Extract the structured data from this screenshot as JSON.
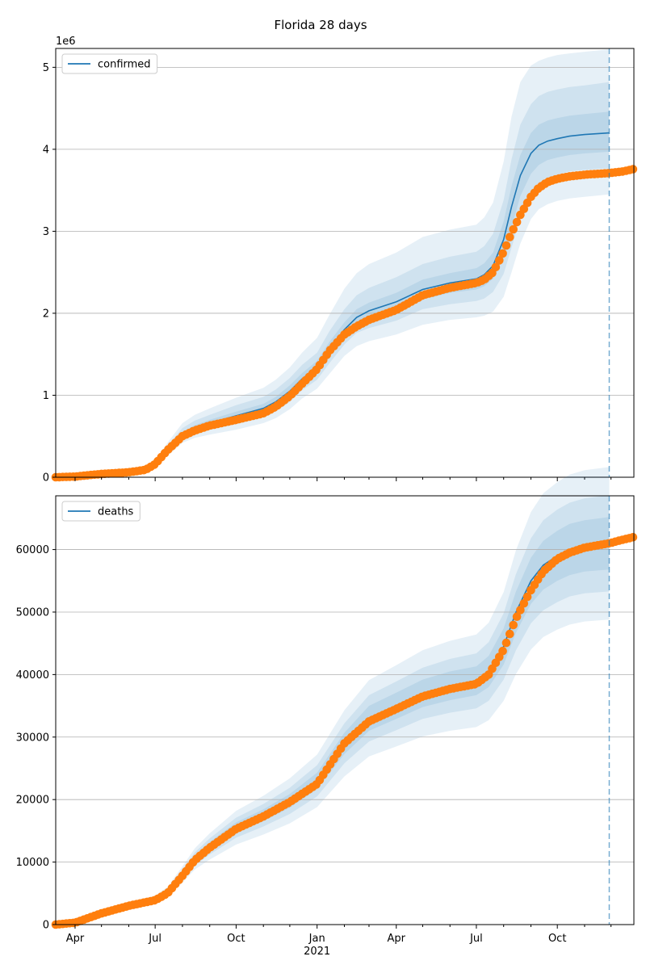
{
  "figure": {
    "title": "Florida 28 days",
    "x_year_label": "2021"
  },
  "colors": {
    "model_line": "#1f77b4",
    "observed_points": "#ff7f0e",
    "band": "#1f77b4",
    "grid": "#b0b0b0",
    "forecast_line": "#1f77b4"
  },
  "chart_data": [
    {
      "type": "line",
      "panel": "top",
      "legend": {
        "label": "confirmed",
        "location": "upper-left"
      },
      "y_scale_label": "1e6",
      "ylim": [
        0,
        5.23
      ],
      "yticks": [
        0,
        1,
        2,
        3,
        4,
        5
      ],
      "ytick_labels": [
        "0",
        "1",
        "2",
        "3",
        "4",
        "5"
      ],
      "xlim": [
        "2020-03-10",
        "2021-12-27"
      ],
      "forecast_start": "2021-11-29",
      "grid": "horizontal",
      "model": {
        "x": [
          "2020-03-10",
          "2020-04-01",
          "2020-05-01",
          "2020-06-01",
          "2020-06-20",
          "2020-07-01",
          "2020-07-15",
          "2020-08-01",
          "2020-08-15",
          "2020-09-01",
          "2020-10-01",
          "2020-11-01",
          "2020-11-15",
          "2020-12-01",
          "2020-12-15",
          "2021-01-01",
          "2021-01-15",
          "2021-02-01",
          "2021-02-15",
          "2021-03-01",
          "2021-04-01",
          "2021-05-01",
          "2021-06-01",
          "2021-07-01",
          "2021-07-10",
          "2021-07-20",
          "2021-08-01",
          "2021-08-10",
          "2021-08-20",
          "2021-09-01",
          "2021-09-10",
          "2021-09-20",
          "2021-10-01",
          "2021-10-15",
          "2021-11-01",
          "2021-11-29"
        ],
        "y": [
          0,
          0.008,
          0.04,
          0.06,
          0.09,
          0.16,
          0.33,
          0.52,
          0.6,
          0.66,
          0.75,
          0.84,
          0.92,
          1.05,
          1.2,
          1.34,
          1.56,
          1.8,
          1.95,
          2.03,
          2.14,
          2.29,
          2.37,
          2.42,
          2.47,
          2.58,
          2.9,
          3.3,
          3.68,
          3.95,
          4.05,
          4.1,
          4.13,
          4.16,
          4.18,
          4.2
        ]
      },
      "bands": [
        {
          "level": "outer",
          "lower": [
            0,
            0.006,
            0.03,
            0.05,
            0.07,
            0.12,
            0.26,
            0.42,
            0.48,
            0.52,
            0.58,
            0.66,
            0.72,
            0.83,
            0.96,
            1.08,
            1.26,
            1.48,
            1.6,
            1.66,
            1.74,
            1.86,
            1.92,
            1.95,
            1.97,
            2.02,
            2.2,
            2.5,
            2.85,
            3.15,
            3.27,
            3.33,
            3.37,
            3.4,
            3.42,
            3.45
          ],
          "upper": [
            0,
            0.01,
            0.05,
            0.075,
            0.11,
            0.2,
            0.42,
            0.66,
            0.76,
            0.84,
            0.97,
            1.09,
            1.19,
            1.34,
            1.52,
            1.7,
            1.98,
            2.3,
            2.49,
            2.6,
            2.74,
            2.93,
            3.02,
            3.08,
            3.17,
            3.35,
            3.85,
            4.4,
            4.82,
            5.02,
            5.08,
            5.12,
            5.15,
            5.17,
            5.19,
            5.22
          ]
        },
        {
          "level": "mid",
          "lower": [
            0,
            0.007,
            0.034,
            0.054,
            0.078,
            0.135,
            0.29,
            0.46,
            0.53,
            0.58,
            0.65,
            0.73,
            0.8,
            0.92,
            1.06,
            1.19,
            1.39,
            1.62,
            1.76,
            1.82,
            1.91,
            2.05,
            2.11,
            2.15,
            2.18,
            2.26,
            2.48,
            2.8,
            3.17,
            3.45,
            3.58,
            3.65,
            3.69,
            3.73,
            3.75,
            3.77
          ],
          "upper": [
            0,
            0.009,
            0.046,
            0.068,
            0.1,
            0.18,
            0.38,
            0.6,
            0.69,
            0.76,
            0.88,
            0.98,
            1.07,
            1.21,
            1.37,
            1.52,
            1.78,
            2.05,
            2.22,
            2.31,
            2.44,
            2.6,
            2.69,
            2.75,
            2.82,
            2.97,
            3.38,
            3.88,
            4.3,
            4.55,
            4.65,
            4.7,
            4.73,
            4.76,
            4.78,
            4.82
          ]
        },
        {
          "level": "inner",
          "lower": [
            0,
            0.0075,
            0.037,
            0.057,
            0.084,
            0.148,
            0.31,
            0.49,
            0.565,
            0.62,
            0.7,
            0.785,
            0.86,
            0.98,
            1.13,
            1.26,
            1.47,
            1.71,
            1.86,
            1.93,
            2.03,
            2.17,
            2.25,
            2.29,
            2.33,
            2.42,
            2.68,
            3.05,
            3.43,
            3.7,
            3.81,
            3.87,
            3.9,
            3.93,
            3.95,
            3.97
          ],
          "upper": [
            0,
            0.0085,
            0.043,
            0.064,
            0.096,
            0.172,
            0.355,
            0.55,
            0.635,
            0.7,
            0.8,
            0.895,
            0.98,
            1.12,
            1.27,
            1.42,
            1.65,
            1.89,
            2.05,
            2.13,
            2.25,
            2.41,
            2.49,
            2.55,
            2.61,
            2.74,
            3.12,
            3.55,
            3.93,
            4.2,
            4.3,
            4.35,
            4.38,
            4.41,
            4.43,
            4.46
          ]
        }
      ],
      "observed": {
        "x": [
          "2020-03-10",
          "2020-04-01",
          "2020-05-01",
          "2020-06-01",
          "2020-06-20",
          "2020-07-01",
          "2020-07-15",
          "2020-08-01",
          "2020-08-15",
          "2020-09-01",
          "2020-10-01",
          "2020-11-01",
          "2020-11-15",
          "2020-12-01",
          "2020-12-15",
          "2021-01-01",
          "2021-01-15",
          "2021-02-01",
          "2021-02-15",
          "2021-03-01",
          "2021-04-01",
          "2021-05-01",
          "2021-06-01",
          "2021-07-01",
          "2021-07-10",
          "2021-07-20",
          "2021-08-01",
          "2021-08-10",
          "2021-08-20",
          "2021-09-01",
          "2021-09-10",
          "2021-09-20",
          "2021-10-01",
          "2021-10-15",
          "2021-11-01",
          "2021-11-29",
          "2021-12-15",
          "2021-12-27"
        ],
        "y": [
          0,
          0.008,
          0.04,
          0.06,
          0.09,
          0.16,
          0.33,
          0.5,
          0.57,
          0.63,
          0.7,
          0.78,
          0.86,
          0.99,
          1.14,
          1.32,
          1.54,
          1.74,
          1.84,
          1.92,
          2.04,
          2.22,
          2.31,
          2.37,
          2.41,
          2.5,
          2.75,
          2.98,
          3.2,
          3.42,
          3.53,
          3.6,
          3.64,
          3.67,
          3.69,
          3.71,
          3.73,
          3.76
        ]
      }
    },
    {
      "type": "line",
      "panel": "bottom",
      "legend": {
        "label": "deaths",
        "location": "upper-left"
      },
      "ylim": [
        0,
        68600
      ],
      "yticks": [
        0,
        10000,
        20000,
        30000,
        40000,
        50000,
        60000
      ],
      "ytick_labels": [
        "0",
        "10000",
        "20000",
        "30000",
        "40000",
        "50000",
        "60000"
      ],
      "xlim": [
        "2020-03-10",
        "2021-12-27"
      ],
      "xticks": [
        "2020-04-01",
        "2020-07-01",
        "2020-10-01",
        "2021-01-01",
        "2021-04-01",
        "2021-07-01",
        "2021-10-01"
      ],
      "xtick_labels": [
        "Apr",
        "Jul",
        "Oct",
        "Jan",
        "Apr",
        "Jul",
        "Oct"
      ],
      "forecast_start": "2021-11-29",
      "grid": "horizontal",
      "model": {
        "x": [
          "2020-03-10",
          "2020-04-01",
          "2020-05-01",
          "2020-06-01",
          "2020-07-01",
          "2020-07-15",
          "2020-08-01",
          "2020-08-15",
          "2020-09-01",
          "2020-10-01",
          "2020-11-01",
          "2020-12-01",
          "2021-01-01",
          "2021-02-01",
          "2021-03-01",
          "2021-04-01",
          "2021-05-01",
          "2021-06-01",
          "2021-07-01",
          "2021-07-15",
          "2021-08-01",
          "2021-08-15",
          "2021-09-01",
          "2021-09-15",
          "2021-10-01",
          "2021-10-15",
          "2021-11-01",
          "2021-11-29"
        ],
        "y": [
          0,
          300,
          1800,
          3000,
          4000,
          5200,
          8000,
          10500,
          12500,
          15500,
          17500,
          19800,
          23000,
          29000,
          33000,
          35000,
          37000,
          38200,
          39000,
          40500,
          44500,
          50000,
          55000,
          57500,
          59000,
          60000,
          60600,
          61000
        ]
      },
      "bands": [
        {
          "level": "outer",
          "lower": [
            0,
            250,
            1550,
            2550,
            3380,
            4380,
            6700,
            8800,
            10400,
            12800,
            14400,
            16200,
            18800,
            23700,
            26900,
            28500,
            30100,
            31000,
            31600,
            32700,
            35800,
            40100,
            44000,
            46000,
            47200,
            48000,
            48500,
            48800
          ],
          "upper": [
            0,
            350,
            2050,
            3450,
            4620,
            6020,
            9300,
            12200,
            14600,
            18200,
            20600,
            23400,
            27200,
            34300,
            39100,
            41500,
            43900,
            45400,
            46400,
            48300,
            53200,
            59900,
            66000,
            69000,
            70800,
            72000,
            72700,
            73200
          ]
        },
        {
          "level": "mid",
          "lower": [
            0,
            270,
            1650,
            2730,
            3620,
            4700,
            7200,
            9450,
            11200,
            13900,
            15700,
            17700,
            20500,
            25800,
            29300,
            31100,
            32900,
            33900,
            34600,
            35800,
            39200,
            43900,
            48200,
            50300,
            51600,
            52500,
            53000,
            53300
          ],
          "upper": [
            0,
            330,
            1950,
            3270,
            4380,
            5700,
            8800,
            11550,
            13800,
            17100,
            19300,
            21900,
            25500,
            32200,
            36700,
            38900,
            41100,
            42500,
            43400,
            45200,
            49800,
            56100,
            61800,
            64700,
            66400,
            67500,
            68200,
            68700
          ]
        },
        {
          "level": "inner",
          "lower": [
            0,
            285,
            1720,
            2860,
            3800,
            4930,
            7580,
            9950,
            11800,
            14650,
            16550,
            18700,
            21700,
            27300,
            31000,
            32900,
            34800,
            35900,
            36700,
            38000,
            41600,
            46700,
            51300,
            53600,
            55000,
            55900,
            56500,
            56800
          ],
          "upper": [
            0,
            315,
            1880,
            3140,
            4200,
            5470,
            8420,
            11050,
            13200,
            16350,
            18450,
            20900,
            24300,
            30700,
            35000,
            37100,
            39200,
            40500,
            41300,
            43000,
            47400,
            53300,
            58700,
            61400,
            63000,
            64100,
            64700,
            65200
          ]
        }
      ],
      "observed": {
        "x": [
          "2020-03-10",
          "2020-04-01",
          "2020-05-01",
          "2020-06-01",
          "2020-07-01",
          "2020-07-15",
          "2020-08-01",
          "2020-08-15",
          "2020-09-01",
          "2020-10-01",
          "2020-11-01",
          "2020-12-01",
          "2021-01-01",
          "2021-02-01",
          "2021-03-01",
          "2021-04-01",
          "2021-05-01",
          "2021-06-01",
          "2021-07-01",
          "2021-07-15",
          "2021-08-01",
          "2021-08-15",
          "2021-09-01",
          "2021-09-15",
          "2021-10-01",
          "2021-10-15",
          "2021-11-01",
          "2021-11-29",
          "2021-12-15",
          "2021-12-27"
        ],
        "y": [
          0,
          300,
          1800,
          3000,
          3900,
          5000,
          7800,
          10300,
          12300,
          15300,
          17300,
          19600,
          22500,
          29000,
          32500,
          34500,
          36500,
          37700,
          38500,
          40000,
          44000,
          49000,
          53500,
          56500,
          58500,
          59500,
          60300,
          61000,
          61600,
          62000
        ]
      }
    }
  ]
}
